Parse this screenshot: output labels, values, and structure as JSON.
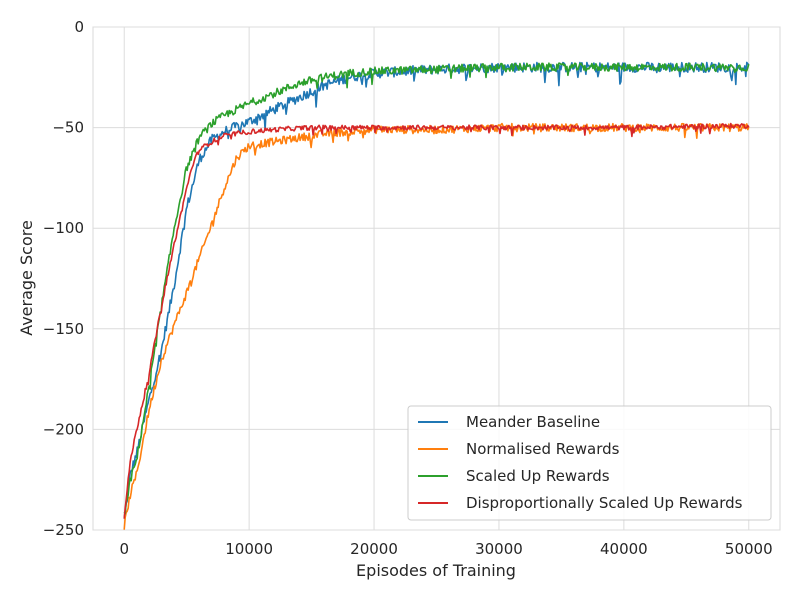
{
  "chart_data": {
    "type": "line",
    "title": "",
    "xlabel": "Episodes of Training",
    "ylabel": "Average Score",
    "xlim": [
      -2500,
      52500
    ],
    "ylim": [
      -250,
      0
    ],
    "xticks": [
      0,
      10000,
      20000,
      30000,
      40000,
      50000
    ],
    "xtick_labels": [
      "0",
      "10000",
      "20000",
      "30000",
      "40000",
      "50000"
    ],
    "yticks": [
      0,
      -50,
      -100,
      -150,
      -200,
      -250
    ],
    "ytick_labels": [
      "0",
      "−50",
      "−100",
      "−150",
      "−200",
      "−250"
    ],
    "grid": true,
    "legend_position": "lower right",
    "series": [
      {
        "name": "Meander Baseline",
        "color": "#1f77b4",
        "noise": 2.5,
        "x": [
          0,
          500,
          1000,
          2000,
          3000,
          4000,
          5000,
          6000,
          7000,
          8000,
          10000,
          12000,
          14000,
          16000,
          18000,
          20000,
          25000,
          30000,
          35000,
          40000,
          45000,
          50000
        ],
        "y": [
          -245,
          -222,
          -212,
          -185,
          -160,
          -128,
          -90,
          -66,
          -56,
          -52,
          -47,
          -41,
          -35,
          -29,
          -25,
          -23,
          -21,
          -20,
          -20,
          -20,
          -20,
          -20
        ]
      },
      {
        "name": "Normalised Rewards",
        "color": "#ff7f0e",
        "noise": 2.0,
        "x": [
          0,
          500,
          1000,
          2000,
          3000,
          4000,
          5000,
          6000,
          7000,
          8000,
          9000,
          10000,
          12000,
          14000,
          16000,
          20000,
          25000,
          30000,
          40000,
          50000
        ],
        "y": [
          -248,
          -232,
          -222,
          -190,
          -165,
          -148,
          -132,
          -115,
          -98,
          -80,
          -65,
          -59,
          -57,
          -55,
          -53,
          -51,
          -51,
          -50,
          -50,
          -50
        ]
      },
      {
        "name": "Scaled Up Rewards",
        "color": "#2ca02c",
        "noise": 2.0,
        "x": [
          0,
          500,
          1000,
          2000,
          3000,
          4000,
          5000,
          6000,
          7000,
          8000,
          10000,
          12000,
          14000,
          16000,
          18000,
          20000,
          25000,
          30000,
          35000,
          40000,
          45000,
          50000
        ],
        "y": [
          -243,
          -225,
          -215,
          -178,
          -138,
          -100,
          -70,
          -55,
          -48,
          -44,
          -38,
          -33,
          -28,
          -25,
          -23,
          -22,
          -21,
          -20,
          -20,
          -20,
          -20,
          -20
        ]
      },
      {
        "name": "Disproportionally Scaled Up Rewards",
        "color": "#d62728",
        "noise": 1.2,
        "x": [
          0,
          500,
          1000,
          2000,
          3000,
          4000,
          5000,
          5500,
          6000,
          7000,
          8000,
          10000,
          12000,
          15000,
          20000,
          25000,
          30000,
          40000,
          50000
        ],
        "y": [
          -244,
          -215,
          -200,
          -172,
          -138,
          -108,
          -80,
          -68,
          -61,
          -57,
          -54,
          -52,
          -51,
          -50,
          -50,
          -50,
          -50,
          -50,
          -49
        ]
      }
    ]
  }
}
